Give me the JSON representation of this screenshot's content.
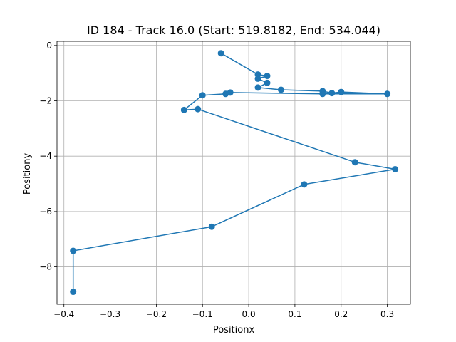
{
  "chart_data": {
    "type": "line",
    "title": "ID 184 - Track 16.0 (Start: 519.8182, End: 534.044)",
    "xlabel": "Positionx",
    "ylabel": "Positiony",
    "xlim": [
      -0.415,
      0.35
    ],
    "ylim": [
      -9.35,
      0.15
    ],
    "grid": true,
    "xticks": [
      {
        "value": -0.4,
        "label": "−0.4"
      },
      {
        "value": -0.3,
        "label": "−0.3"
      },
      {
        "value": -0.2,
        "label": "−0.2"
      },
      {
        "value": -0.1,
        "label": "−0.1"
      },
      {
        "value": 0.0,
        "label": "0.0"
      },
      {
        "value": 0.1,
        "label": "0.1"
      },
      {
        "value": 0.2,
        "label": "0.2"
      },
      {
        "value": 0.3,
        "label": "0.3"
      }
    ],
    "yticks": [
      {
        "value": 0,
        "label": "0"
      },
      {
        "value": -2,
        "label": "−2"
      },
      {
        "value": -4,
        "label": "−4"
      },
      {
        "value": -6,
        "label": "−6"
      },
      {
        "value": -8,
        "label": "−8"
      }
    ],
    "series": [
      {
        "color": "#1f77b4",
        "marker": "circle",
        "points": [
          {
            "x": -0.06,
            "y": -0.28
          },
          {
            "x": 0.02,
            "y": -1.05
          },
          {
            "x": 0.04,
            "y": -1.1
          },
          {
            "x": 0.02,
            "y": -1.2
          },
          {
            "x": 0.04,
            "y": -1.35
          },
          {
            "x": 0.02,
            "y": -1.52
          },
          {
            "x": 0.07,
            "y": -1.6
          },
          {
            "x": 0.16,
            "y": -1.65
          },
          {
            "x": 0.18,
            "y": -1.72
          },
          {
            "x": 0.2,
            "y": -1.68
          },
          {
            "x": 0.3,
            "y": -1.75
          },
          {
            "x": 0.16,
            "y": -1.75
          },
          {
            "x": -0.04,
            "y": -1.7
          },
          {
            "x": -0.05,
            "y": -1.75
          },
          {
            "x": -0.1,
            "y": -1.8
          },
          {
            "x": -0.14,
            "y": -2.33
          },
          {
            "x": -0.11,
            "y": -2.3
          },
          {
            "x": 0.23,
            "y": -4.22
          },
          {
            "x": 0.317,
            "y": -4.47
          },
          {
            "x": 0.12,
            "y": -5.02
          },
          {
            "x": -0.08,
            "y": -6.55
          },
          {
            "x": -0.38,
            "y": -7.42
          },
          {
            "x": -0.38,
            "y": -8.9
          }
        ]
      }
    ]
  }
}
